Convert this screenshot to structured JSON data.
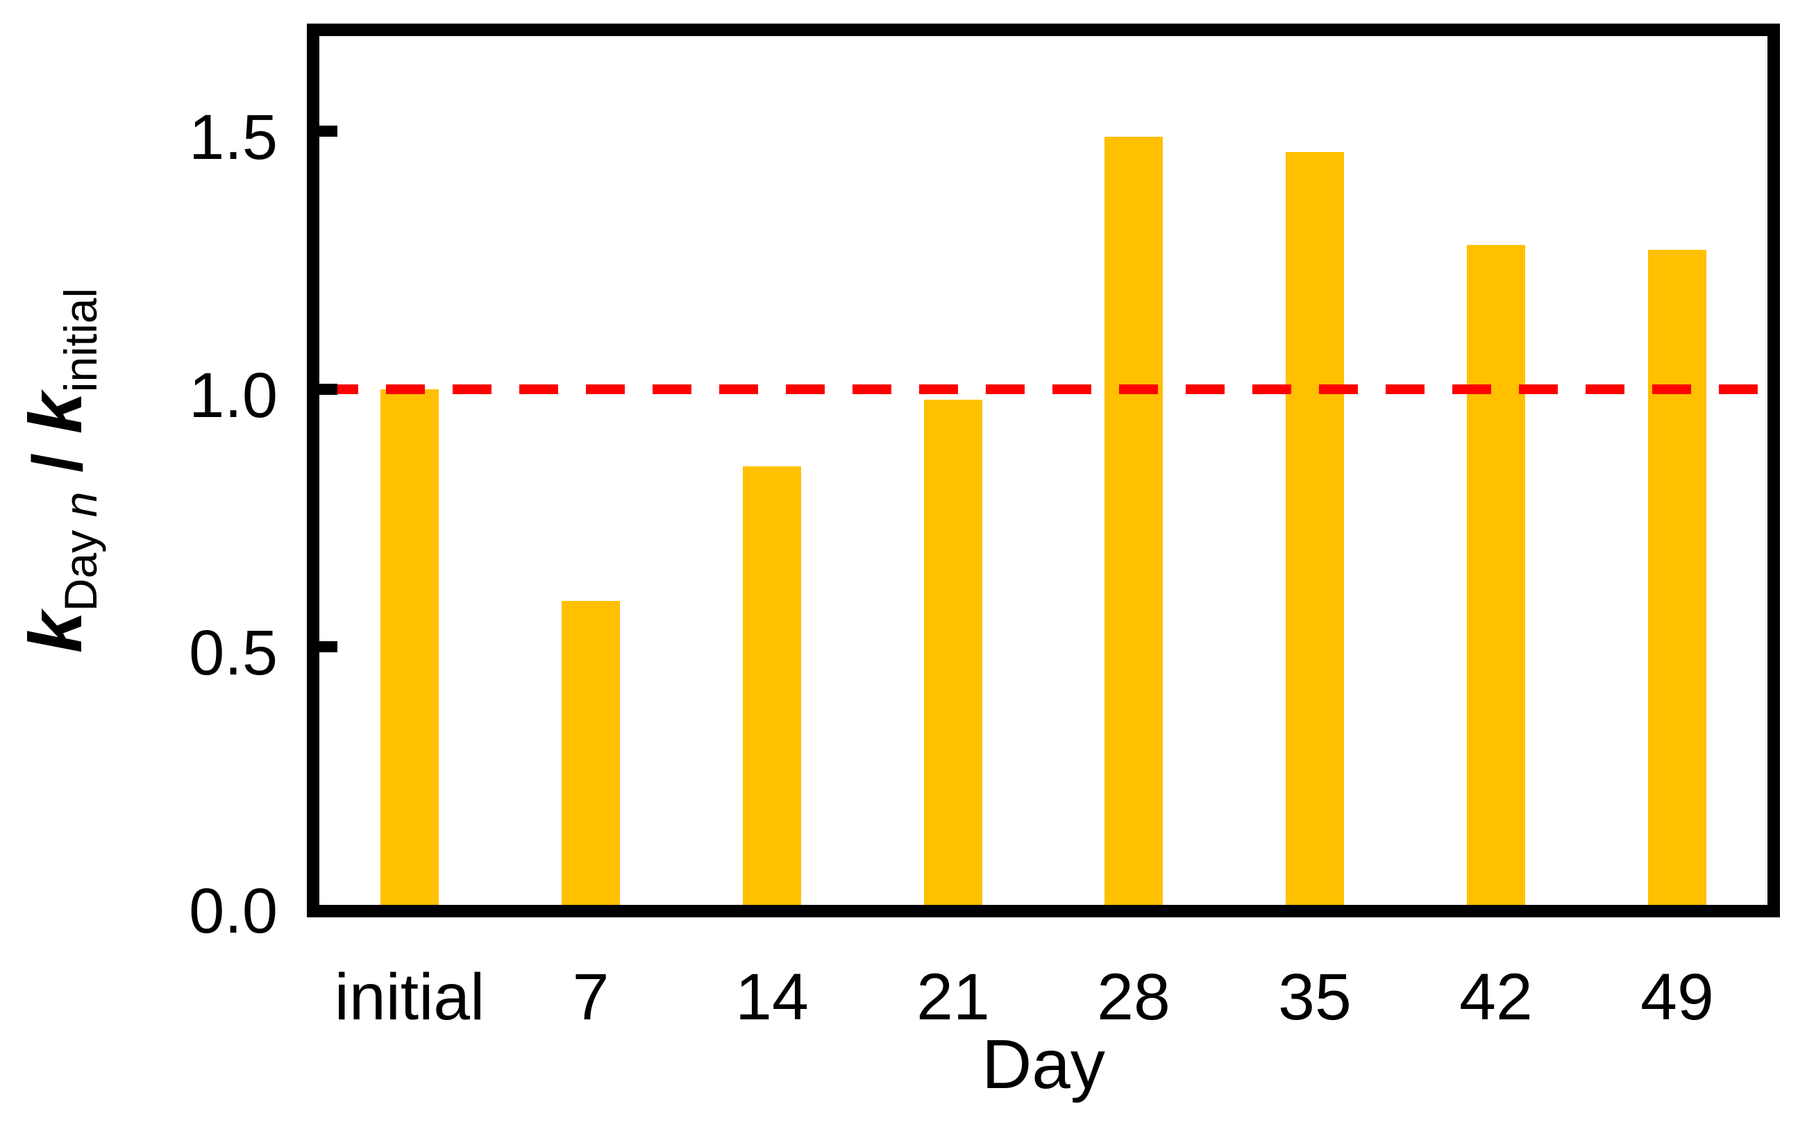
{
  "chart_data": {
    "type": "bar",
    "categories": [
      "initial",
      "7",
      "14",
      "21",
      "28",
      "35",
      "42",
      "49"
    ],
    "values": [
      1.0,
      0.59,
      0.85,
      0.98,
      1.49,
      1.46,
      1.28,
      1.27
    ],
    "title": "",
    "xlabel": "Day",
    "ylabel": "k_Day n / k_initial",
    "ylabel_parts": {
      "k1": "k",
      "sub1_text": "Day ",
      "sub1_var": "n",
      "slash": " / ",
      "k2": "k",
      "sub2": "initial"
    },
    "y_tick_values": [
      0.0,
      0.5,
      1.0,
      1.5
    ],
    "y_tick_labels": [
      "0.0",
      "0.5",
      "1.0",
      "1.5"
    ],
    "ylim": [
      0,
      1.685
    ],
    "grid": false,
    "legend": false,
    "reference_line": {
      "value": 1.0,
      "style": "dashed",
      "color": "#FF0000"
    },
    "colors": {
      "bar": "#FFC000",
      "axis": "#000000",
      "background": "#FFFFFF",
      "text": "#000000"
    }
  }
}
